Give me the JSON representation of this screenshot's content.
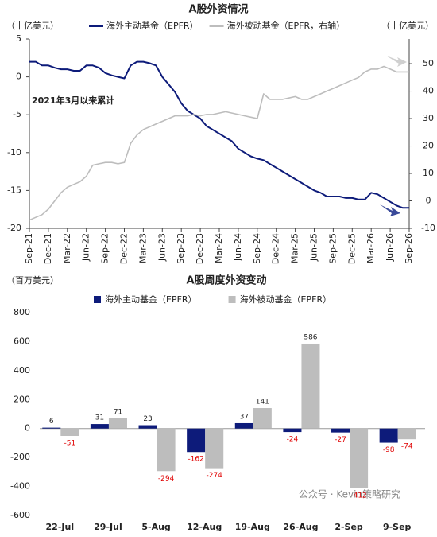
{
  "chart_data": [
    {
      "type": "line",
      "title": "A股外资情况",
      "y_label": "（十亿美元）",
      "y2_label": "（十亿美元）",
      "annotation": "2021年3月以来累计",
      "categories": [
        "Sep-21",
        null,
        null,
        "Dec-21",
        null,
        null,
        "Mar-22",
        null,
        null,
        "Jun-22",
        null,
        null,
        "Sep-22",
        null,
        null,
        "Dec-22",
        null,
        null,
        "Mar-23",
        null,
        null,
        "Jun-23",
        null,
        null,
        "Sep-23",
        null,
        null,
        "Dec-23",
        null,
        null,
        "Mar-24",
        null,
        null,
        "Jun-24",
        null,
        null,
        "Sep-24",
        null,
        null,
        "Dec-24",
        null,
        null,
        "Mar-25",
        null,
        null,
        "Jun-25",
        null,
        null,
        "Sep-25",
        null,
        null,
        "Dec-25",
        null,
        null,
        "Mar-26",
        null,
        null,
        "Jun-26",
        null,
        null,
        "Sep-26"
      ],
      "series": [
        {
          "name": "海外主动基金（EPFR）",
          "color": "#0d1b7a",
          "axis": "y",
          "values": [
            2,
            2,
            1.5,
            1.5,
            1.2,
            1.0,
            1.0,
            0.8,
            0.8,
            1.5,
            1.5,
            1.2,
            0.5,
            0.2,
            0,
            -0.2,
            1.5,
            2,
            2,
            1.8,
            1.5,
            0,
            -1,
            -2,
            -3.5,
            -4.5,
            -5,
            -5.5,
            -6.5,
            -7,
            -7.5,
            -8,
            -8.5,
            -9.5,
            -10,
            -10.5,
            -10.8,
            -11,
            -11.5,
            -12,
            -12.5,
            -13,
            -13.5,
            -14,
            -14.5,
            -15,
            -15.3,
            -15.8,
            -15.8,
            -15.8,
            -16,
            -16,
            -16.2,
            -16.2,
            -15.3,
            -15.5,
            -16,
            -16.5,
            -17,
            -17.3,
            -17.3
          ]
        },
        {
          "name": "海外被动基金（EPFR，右轴）",
          "color": "#bdbdbd",
          "axis": "y2",
          "values": [
            -7,
            -6,
            -5,
            -3,
            0,
            3,
            5,
            6,
            7,
            9,
            13,
            13.5,
            14,
            14,
            13.5,
            14,
            21,
            24,
            26,
            27,
            28,
            29,
            30,
            31,
            31,
            31,
            31.5,
            31,
            31.5,
            31.5,
            32,
            32.5,
            32,
            31.5,
            31,
            30.5,
            30,
            39,
            37,
            37,
            37,
            37.5,
            38,
            37,
            37,
            38,
            39,
            40,
            41,
            42,
            43,
            44,
            45,
            47,
            48,
            48,
            49,
            48,
            47,
            47,
            47
          ]
        }
      ],
      "ylim": [
        -20,
        5
      ],
      "yticks": [
        -20,
        -15,
        -10,
        -5,
        0,
        5
      ],
      "y2lim": [
        -10,
        59
      ],
      "y2ticks": [
        -10,
        0,
        10,
        20,
        30,
        40,
        50
      ]
    },
    {
      "type": "bar",
      "title": "A股周度外资变动",
      "y_label": "（百万美元）",
      "categories": [
        "22-Jul",
        "29-Jul",
        "5-Aug",
        "12-Aug",
        "19-Aug",
        "26-Aug",
        "2-Sep",
        "9-Sep"
      ],
      "series": [
        {
          "name": "海外主动基金（EPFR）",
          "color": "#0d1b7a",
          "values": [
            6,
            31,
            23,
            -162,
            37,
            -24,
            -27,
            -98
          ]
        },
        {
          "name": "海外被动基金（EPFR）",
          "color": "#bdbdbd",
          "values": [
            -51,
            71,
            -294,
            -274,
            141,
            586,
            -412,
            -74
          ]
        }
      ],
      "ylim": [
        -600,
        800
      ],
      "yticks": [
        -600,
        -400,
        -200,
        0,
        200,
        400,
        600,
        800
      ],
      "watermark": "公众号 · Kevin策略研究"
    }
  ]
}
